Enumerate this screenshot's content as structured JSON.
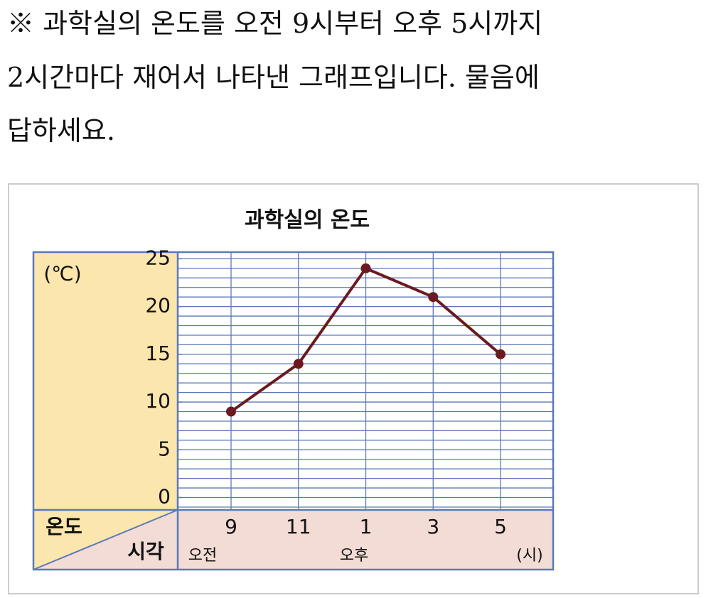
{
  "question": [
    "※ 과학실의 온도를 오전 9시부터 오후 5시까지",
    "2시간마다 재어서 나타낸 그래프입니다. 물음에",
    "답하세요."
  ],
  "chart_data": {
    "type": "line",
    "title": "과학실의 온도",
    "y_unit": "(℃)",
    "row_header": "온도",
    "column_header": "시각",
    "categories": [
      "9",
      "11",
      "1",
      "3",
      "5"
    ],
    "x_period_labels": [
      "오전",
      "오후"
    ],
    "x_unit": "(시)",
    "values": [
      9,
      14,
      24,
      21,
      15
    ],
    "color": "#6b1a1f",
    "ylim": [
      -1.3,
      25.7
    ],
    "yticks": [
      0,
      5,
      10,
      15,
      20,
      25
    ],
    "minor_grid_step": 1,
    "grid": true
  }
}
